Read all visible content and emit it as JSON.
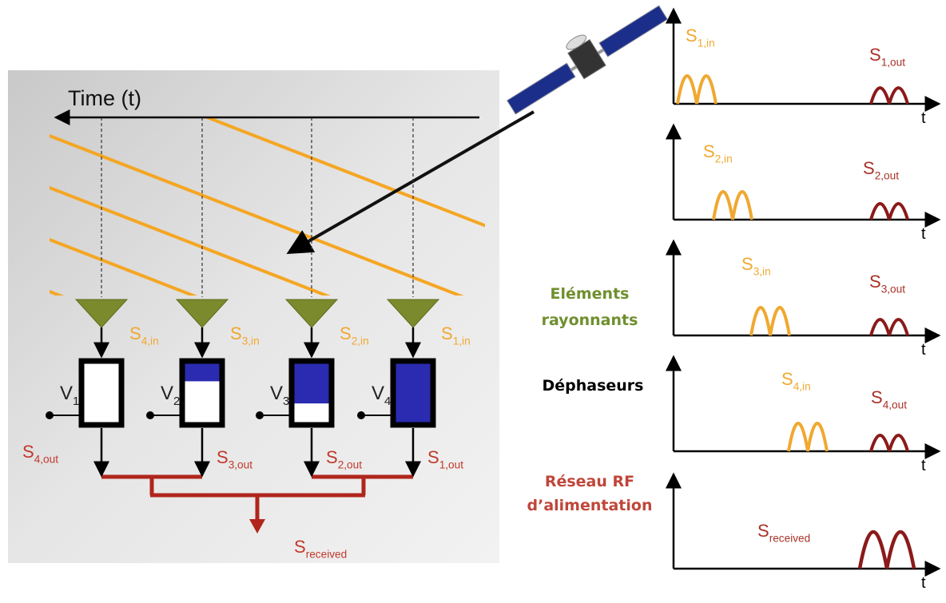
{
  "left_panel": {
    "time_axis": "Time (t)",
    "antennas": [
      {
        "control": {
          "base": "V",
          "sub": "1"
        },
        "input": {
          "base": "S",
          "sub": "4,in"
        },
        "output": {
          "base": "S",
          "sub": "4,out"
        }
      },
      {
        "control": {
          "base": "V",
          "sub": "2"
        },
        "input": {
          "base": "S",
          "sub": "3,in"
        },
        "output": {
          "base": "S",
          "sub": "3,out"
        }
      },
      {
        "control": {
          "base": "V",
          "sub": "3"
        },
        "input": {
          "base": "S",
          "sub": "2,in"
        },
        "output": {
          "base": "S",
          "sub": "2,out"
        }
      },
      {
        "control": {
          "base": "V",
          "sub": "4"
        },
        "input": {
          "base": "S",
          "sub": "1,in"
        },
        "output": {
          "base": "S",
          "sub": "1,out"
        }
      }
    ],
    "received": {
      "base": "S",
      "sub": "received"
    }
  },
  "legend": {
    "radiating_elements": [
      "Eléments",
      "rayonnants"
    ],
    "phase_shifters": "Déphaseurs",
    "feed_network": [
      "Réseau RF",
      "d’alimentation"
    ]
  },
  "plots": [
    {
      "input": {
        "base": "S",
        "sub": "1,in"
      },
      "output": {
        "base": "S",
        "sub": "1,out"
      },
      "axis": "t"
    },
    {
      "input": {
        "base": "S",
        "sub": "2,in"
      },
      "output": {
        "base": "S",
        "sub": "2,out"
      },
      "axis": "t"
    },
    {
      "input": {
        "base": "S",
        "sub": "3,in"
      },
      "output": {
        "base": "S",
        "sub": "3,out"
      },
      "axis": "t"
    },
    {
      "input": {
        "base": "S",
        "sub": "4,in"
      },
      "output": {
        "base": "S",
        "sub": "4,out"
      },
      "axis": "t"
    },
    {
      "output": {
        "base": "S",
        "sub": "received"
      },
      "axis": "t"
    }
  ]
}
